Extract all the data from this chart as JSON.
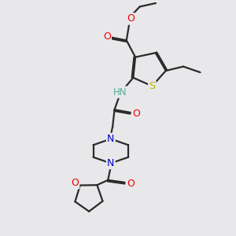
{
  "bg_color": "#e8e8ea",
  "bond_color": "#2a2a2a",
  "atom_colors": {
    "S": "#b8b800",
    "O": "#ee0000",
    "N": "#0000cc",
    "H": "#5aaa9a",
    "C": "#2a2a2a"
  },
  "lw": 1.6,
  "dbo": 0.06,
  "figsize": [
    3.0,
    3.0
  ],
  "dpi": 100,
  "xlim": [
    0,
    10
  ],
  "ylim": [
    0,
    10
  ]
}
